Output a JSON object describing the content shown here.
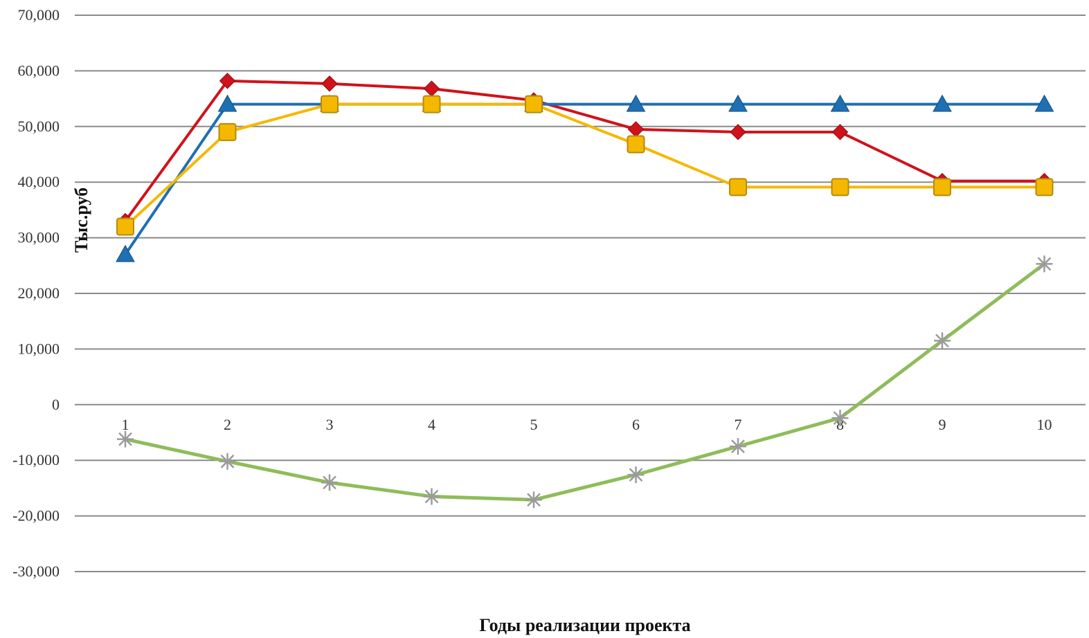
{
  "chart_data": {
    "type": "line",
    "xlabel": "Годы реализации проекта",
    "ylabel": "Тыс.руб",
    "categories": [
      "1",
      "2",
      "3",
      "4",
      "5",
      "6",
      "7",
      "8",
      "9",
      "10"
    ],
    "ylim": [
      -30000,
      70000
    ],
    "yticks": [
      70000,
      60000,
      50000,
      40000,
      30000,
      20000,
      10000,
      0,
      -10000,
      -20000,
      -30000
    ],
    "ytick_labels": [
      "70,000",
      "60,000",
      "50,000",
      "40,000",
      "30,000",
      "20,000",
      "10,000",
      "0",
      "-10,000",
      "-20,000",
      "-30,000"
    ],
    "grid": "horizontal",
    "legend": "none",
    "series": [
      {
        "marker": "diamond",
        "color": "#d0121b",
        "values": [
          33000,
          58200,
          57700,
          56800,
          54700,
          49500,
          49000,
          49000,
          40200,
          40200
        ]
      },
      {
        "marker": "triangle",
        "color": "#1f6fb3",
        "values": [
          27000,
          54000,
          54000,
          54000,
          54000,
          54000,
          54000,
          54000,
          54000,
          54000
        ]
      },
      {
        "marker": "square",
        "color": "#f5b800",
        "values": [
          32000,
          49000,
          54000,
          54000,
          54000,
          46800,
          39100,
          39100,
          39100,
          39100
        ]
      },
      {
        "marker": "star",
        "color": "#8fbc5a",
        "values": [
          -6200,
          -10200,
          -14000,
          -16500,
          -17100,
          -12600,
          -7500,
          -2400,
          11500,
          25300
        ]
      }
    ]
  }
}
